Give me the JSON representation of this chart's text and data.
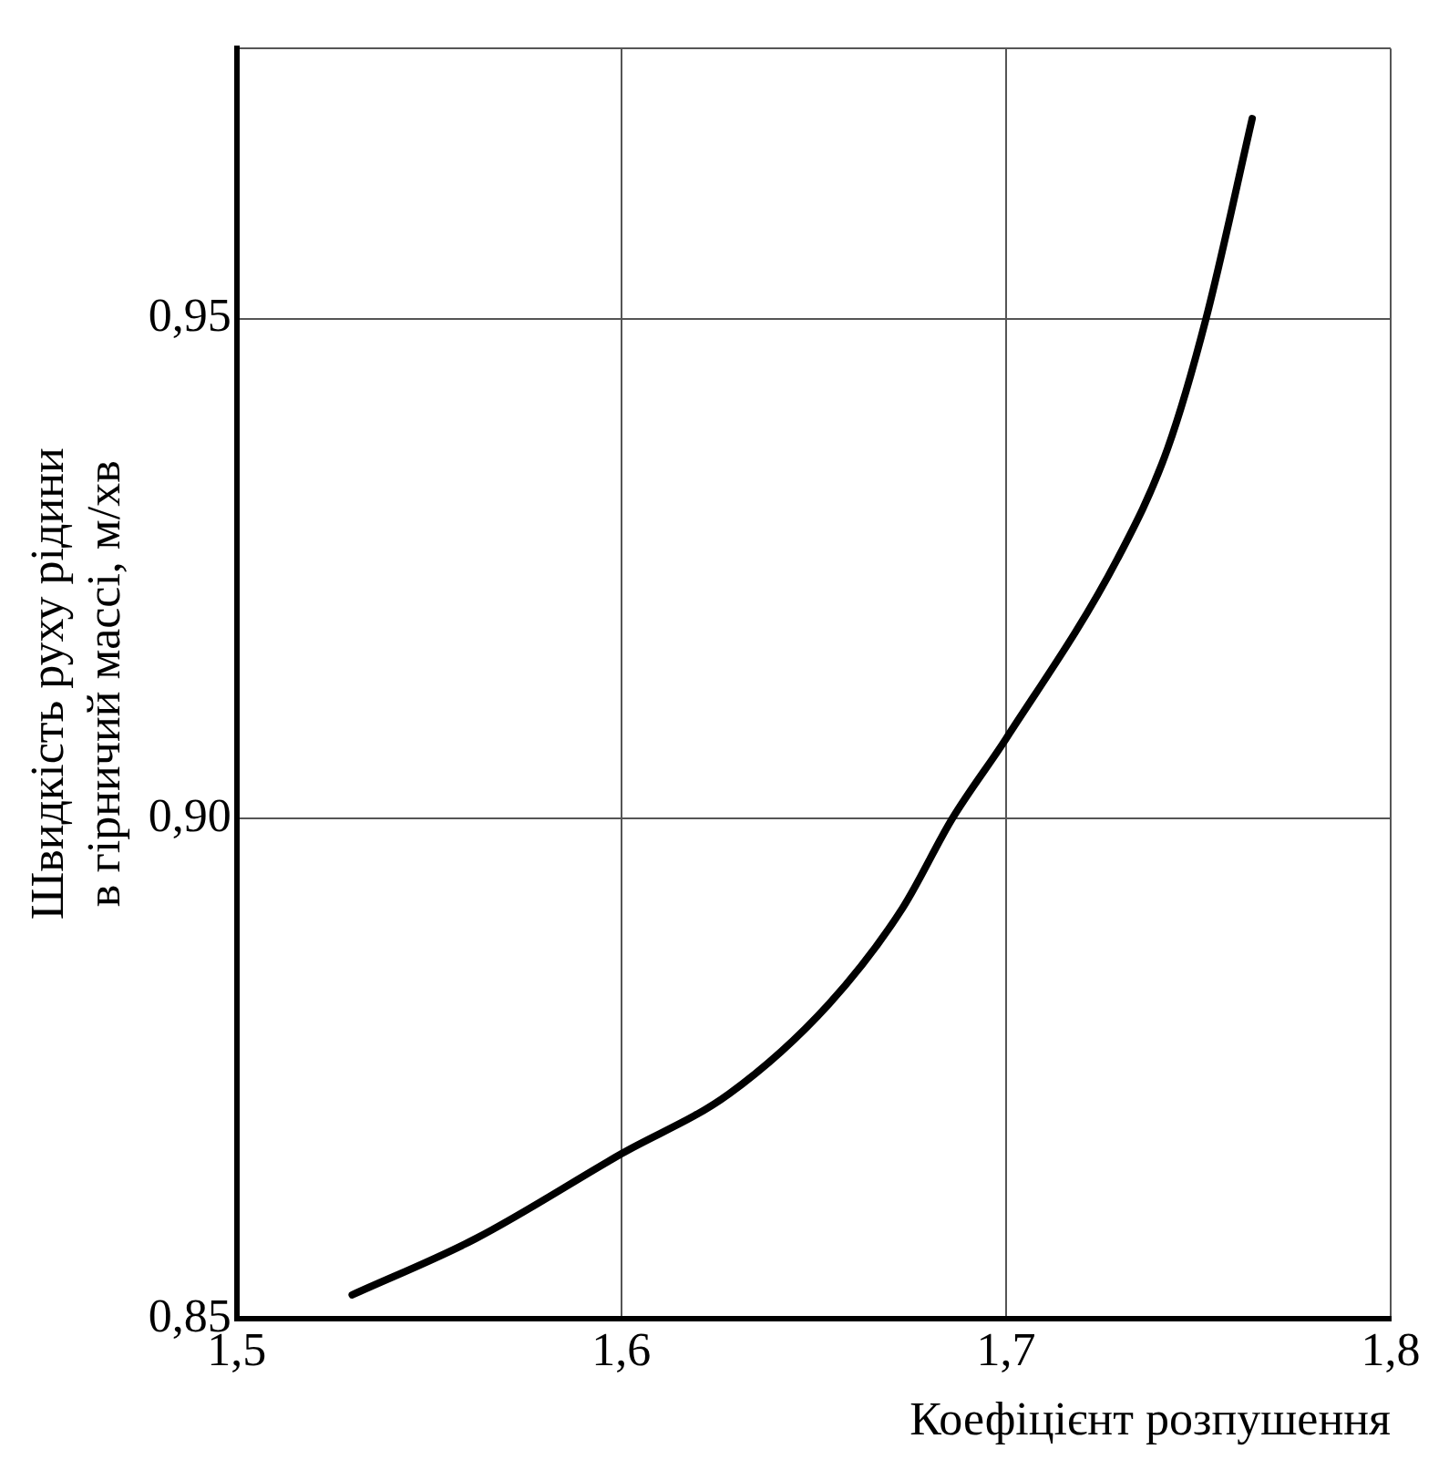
{
  "chart_data": {
    "type": "line",
    "xlabel": "Коефіцієнт розпушення",
    "ylabel": "Швидкість руху рідини\nв гірничий массі, м/хв",
    "x": [
      1.53,
      1.562,
      1.6,
      1.628,
      1.654,
      1.673,
      1.686,
      1.7,
      1.729,
      1.742,
      1.752,
      1.764
    ],
    "series": [
      {
        "color": "#000000",
        "values": [
          0.8524,
          0.858,
          0.8665,
          0.8725,
          0.8815,
          0.891,
          0.9,
          0.908,
          0.926,
          0.937,
          0.95,
          0.97
        ]
      }
    ],
    "xlim": [
      1.5,
      1.8
    ],
    "xticks": [
      {
        "value": 1.5,
        "label": "1,5"
      },
      {
        "value": 1.6,
        "label": "1,6"
      },
      {
        "value": 1.7,
        "label": "1,7"
      },
      {
        "value": 1.8,
        "label": "1,8"
      }
    ],
    "ylim": [
      0.85,
      0.977
    ],
    "yticks": [
      {
        "value": 0.85,
        "label": "0,85"
      },
      {
        "value": 0.9,
        "label": "0,90"
      },
      {
        "value": 0.95,
        "label": "0,95"
      },
      {
        "value": 0.977,
        "label": null
      }
    ],
    "grid": true,
    "legend": false,
    "marker": "none",
    "line_style": "solid"
  }
}
